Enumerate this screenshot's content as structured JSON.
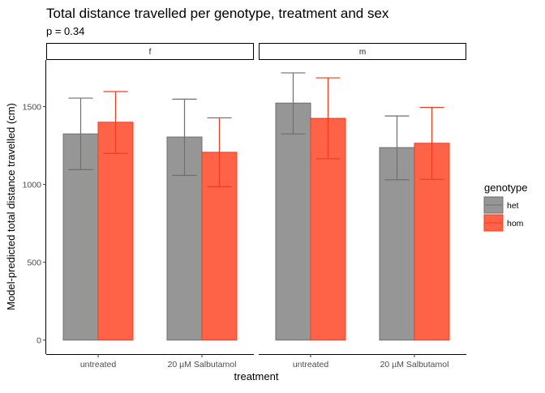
{
  "chart_data": {
    "type": "bar",
    "title": "Total distance travelled per genotype, treatment and sex",
    "subtitle": "p = 0.34",
    "xlabel": "treatment",
    "ylabel": "Model-predicted total distance travelled (cm)",
    "ylim": [
      -90,
      1800
    ],
    "yticks": [
      0,
      500,
      1000,
      1500
    ],
    "grid": false,
    "categories": [
      "untreated",
      "20 µM Salbutamol"
    ],
    "facets": [
      "f",
      "m"
    ],
    "legend": {
      "title": "genotype",
      "position": "right",
      "entries": [
        "het",
        "hom"
      ]
    },
    "colors": {
      "het_fill": "#969696",
      "het_stroke": "#6f6f6f",
      "hom_fill": "#ff6347",
      "hom_stroke": "#f03c1e"
    },
    "panels": [
      {
        "facet": "f",
        "series": [
          {
            "name": "het",
            "values": [
              1325,
              1305
            ],
            "lower": [
              1095,
              1058
            ],
            "upper": [
              1555,
              1548
            ]
          },
          {
            "name": "hom",
            "values": [
              1400,
              1207
            ],
            "lower": [
              1200,
              985
            ],
            "upper": [
              1597,
              1428
            ]
          }
        ]
      },
      {
        "facet": "m",
        "series": [
          {
            "name": "het",
            "values": [
              1523,
              1237
            ],
            "lower": [
              1325,
              1030
            ],
            "upper": [
              1717,
              1440
            ]
          },
          {
            "name": "hom",
            "values": [
              1425,
              1265
            ],
            "lower": [
              1165,
              1033
            ],
            "upper": [
              1685,
              1495
            ]
          }
        ]
      }
    ]
  }
}
